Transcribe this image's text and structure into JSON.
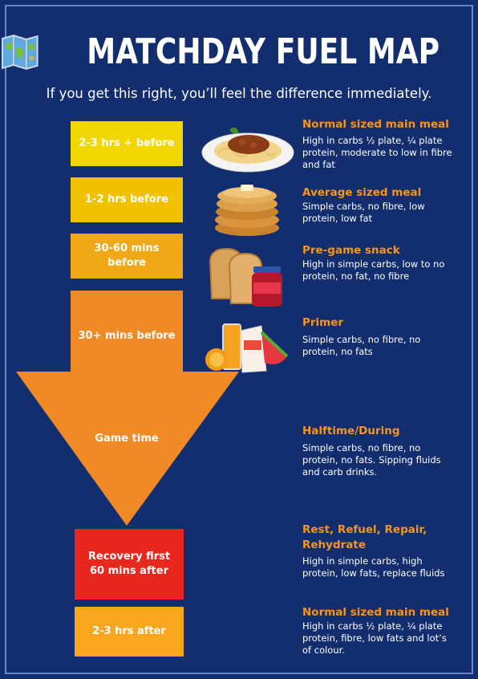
{
  "header": {
    "icon": "world-map-icon",
    "title": "MATCHDAY FUEL MAP",
    "subtitle": "If you get this right, you’ll feel the difference immediately."
  },
  "colors": {
    "background": "#132e6e",
    "heading": "#f7941d",
    "box_1": "#f2d600",
    "box_2": "#f0c200",
    "box_3": "#f0a816",
    "arrow": "#f08a24",
    "recovery": "#e8281c",
    "after": "#f7a61d"
  },
  "timeline": [
    {
      "label": "2-3 hrs + before",
      "image": "spaghetti-bolognese-image",
      "heading": "Normal sized main meal",
      "text": "High in carbs ½ plate, ¼ plate protein, moderate to low in fibre and fat"
    },
    {
      "label": "1-2 hrs before",
      "image": "pancakes-image",
      "heading": "Average sized meal",
      "text": "Simple carbs, no fibre, low protein, low fat"
    },
    {
      "label": "30-60 mins before",
      "image": "toast-and-jam-image",
      "heading": "Pre-game snack",
      "text": "High in simple carbs, low to no protein, no fat, no fibre"
    },
    {
      "label": "30+ mins before",
      "image": "juice-fruit-pouch-image",
      "heading": "Primer",
      "text": "Simple carbs, no fibre, no protein, no fats"
    },
    {
      "label": "Game time",
      "heading": "Halftime/During",
      "text": "Simple carbs, no fibre, no protein, no fats. Sipping fluids and carb drinks."
    },
    {
      "label": "Recovery first 60 mins after",
      "heading": "Rest, Refuel, Repair, Rehydrate",
      "text": "High in simple carbs, high protein, low fats, replace fluids"
    },
    {
      "label": "2-3 hrs after",
      "heading": "Normal sized main meal",
      "text": "High in carbs ½ plate, ¼ plate protein, fibre, low fats and lot’s of colour."
    }
  ]
}
